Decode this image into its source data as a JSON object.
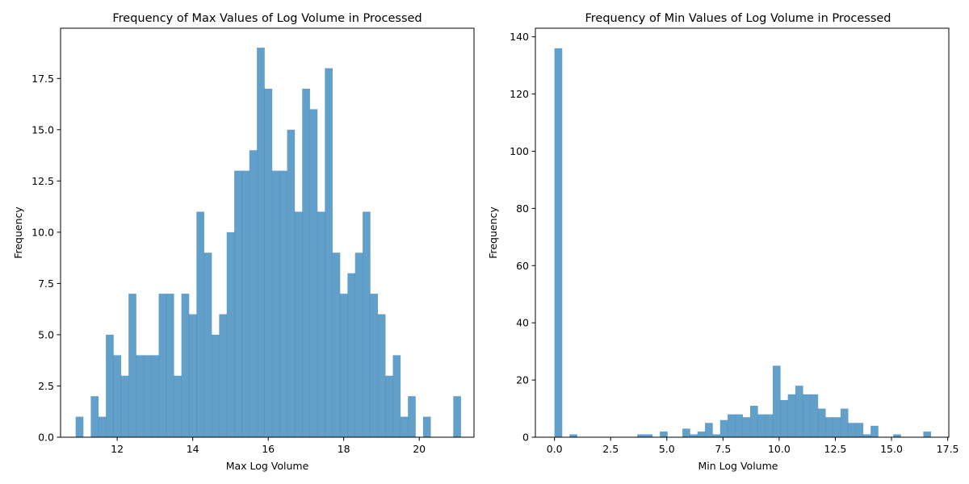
{
  "colors": {
    "bar": "#1f77b4",
    "bar_opacity": 0.7,
    "axes": "#000000",
    "background": "#ffffff"
  },
  "chart_data": [
    {
      "type": "histogram",
      "title": "Frequency of Max Values of Log Volume in Processed",
      "xlabel": "Max Log Volume",
      "ylabel": "Frequency",
      "xlim": [
        10.5,
        21.45
      ],
      "ylim": [
        0,
        19.95
      ],
      "xticks": [
        12,
        14,
        16,
        18,
        20
      ],
      "xtick_labels": [
        "12",
        "14",
        "16",
        "18",
        "20"
      ],
      "yticks": [
        0,
        2.5,
        5,
        7.5,
        10,
        12.5,
        15,
        17.5
      ],
      "ytick_labels": [
        "0.0",
        "2.5",
        "5.0",
        "7.5",
        "10.0",
        "12.5",
        "15.0",
        "17.5"
      ],
      "bin_start": 10.9,
      "bin_width": 0.2,
      "values": [
        1,
        0,
        2,
        1,
        5,
        4,
        3,
        7,
        4,
        4,
        4,
        7,
        7,
        3,
        7,
        6,
        11,
        9,
        5,
        6,
        10,
        13,
        13,
        14,
        19,
        17,
        13,
        13,
        15,
        11,
        17,
        16,
        11,
        18,
        9,
        7,
        8,
        9,
        11,
        7,
        6,
        3,
        4,
        1,
        2,
        0,
        1,
        0,
        0,
        0,
        2
      ],
      "grid": false,
      "legend": "none"
    },
    {
      "type": "histogram",
      "title": "Frequency of Min Values of Log Volume in Processed",
      "xlabel": "Min Log Volume",
      "ylabel": "Frequency",
      "xlim": [
        -0.85,
        17.55
      ],
      "ylim": [
        0,
        143
      ],
      "xticks": [
        0,
        2.5,
        5,
        7.5,
        10,
        12.5,
        15,
        17.5
      ],
      "xtick_labels": [
        "0.0",
        "2.5",
        "5.0",
        "7.5",
        "10.0",
        "12.5",
        "15.0",
        "17.5"
      ],
      "yticks": [
        0,
        20,
        40,
        60,
        80,
        100,
        120,
        140
      ],
      "ytick_labels": [
        "0",
        "20",
        "40",
        "60",
        "80",
        "100",
        "120",
        "140"
      ],
      "bin_start": 0,
      "bin_width": 0.335,
      "values": [
        136,
        0,
        1,
        0,
        0,
        0,
        0,
        0,
        0,
        0,
        0,
        1,
        1,
        0,
        2,
        0,
        0,
        3,
        1,
        2,
        5,
        1,
        6,
        8,
        8,
        7,
        11,
        8,
        8,
        25,
        13,
        15,
        18,
        15,
        15,
        10,
        7,
        7,
        10,
        5,
        5,
        1,
        4,
        0,
        0,
        1,
        0,
        0,
        0,
        2
      ],
      "grid": false,
      "legend": "none"
    }
  ]
}
